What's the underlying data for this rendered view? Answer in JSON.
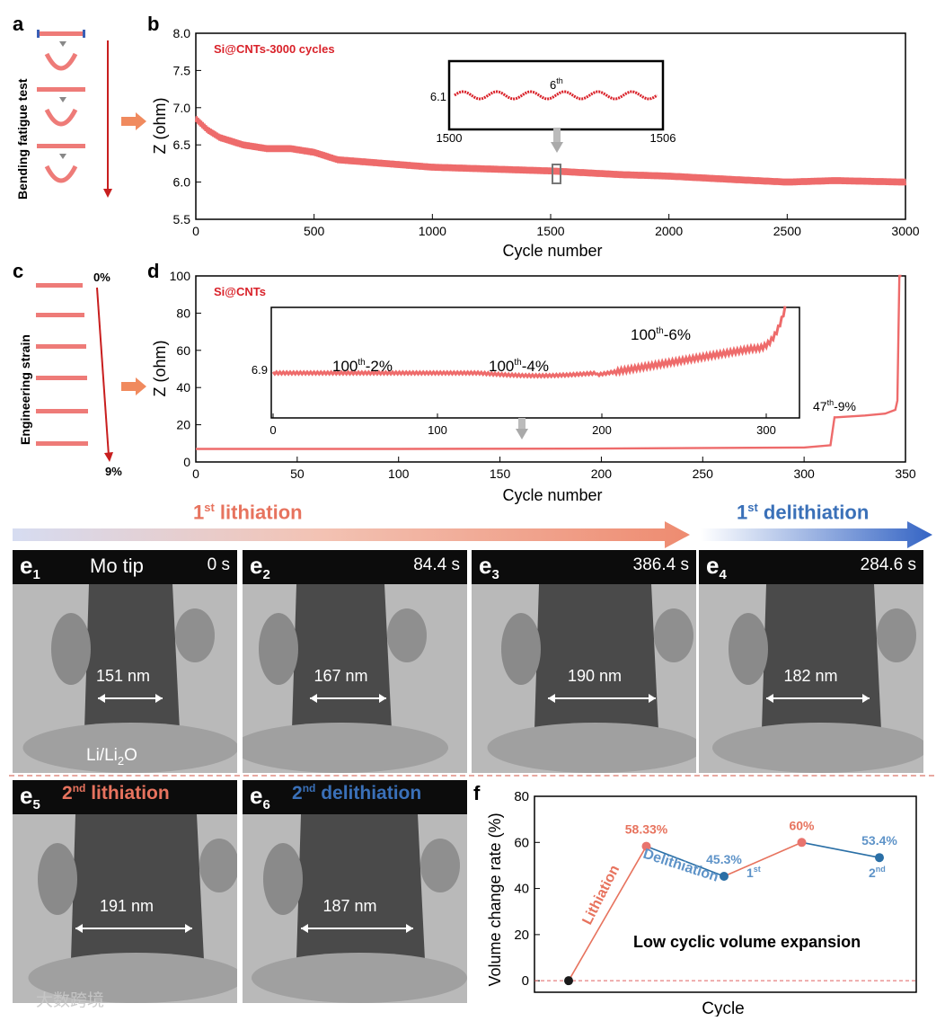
{
  "panels": {
    "a": {
      "letter": "a",
      "title": "Bending fatigue test"
    },
    "b": {
      "letter": "b",
      "legend": "Si@CNTs-3000 cycles",
      "inset": {
        "value_label": "6.1",
        "cycle_label": "6",
        "cycle_sup": "th",
        "x_start": "1500",
        "x_end": "1506"
      }
    },
    "c": {
      "letter": "c",
      "title": "Engineering strain",
      "start": "0%",
      "end": "9%"
    },
    "d": {
      "letter": "d",
      "legend": "Si@CNTs",
      "inset": {
        "value_label": "6.9",
        "label_2": {
          "main": "100",
          "sup": "th",
          "tail": "-2%"
        },
        "label_4": {
          "main": "100",
          "sup": "th",
          "tail": "-4%"
        },
        "label_6": {
          "main": "100",
          "sup": "th",
          "tail": "-6%"
        },
        "x_ticks": [
          "0",
          "100",
          "200",
          "300"
        ]
      },
      "label_9": {
        "main": "47",
        "sup": "th",
        "tail": "-9%"
      }
    },
    "lithiation_arrow": {
      "main": "1",
      "sup": "st",
      "tail": " lithiation"
    },
    "delithiation_arrow": {
      "main": "1",
      "sup": "st",
      "tail": " delithiation"
    },
    "tem": [
      {
        "id": "e",
        "sub": "1",
        "time": "0 s",
        "top_label": "Mo tip",
        "width_label": "151 nm",
        "bottom_label": "Li/Li",
        "bottom_sub": "2",
        "bottom_tail": "O"
      },
      {
        "id": "e",
        "sub": "2",
        "time": "84.4 s",
        "width_label": "167 nm"
      },
      {
        "id": "e",
        "sub": "3",
        "time": "386.4 s",
        "width_label": "190 nm"
      },
      {
        "id": "e",
        "sub": "4",
        "time": "284.6 s",
        "width_label": "182 nm"
      },
      {
        "id": "e",
        "sub": "5",
        "caption": {
          "main": "2",
          "sup": "nd",
          "tail": " lithiation"
        },
        "width_label": "191 nm"
      },
      {
        "id": "e",
        "sub": "6",
        "caption": {
          "main": "2",
          "sup": "nd",
          "tail": " delithiation"
        },
        "width_label": "187 nm"
      }
    ],
    "f": {
      "letter": "f",
      "annotation_lith": "Lithiation",
      "annotation_delith": "Delithiation",
      "tag_1": {
        "main": "1",
        "sup": "st"
      },
      "tag_2": {
        "main": "2",
        "sup": "nd"
      },
      "note": "Low cyclic volume expansion"
    },
    "watermark": "大数跨境"
  },
  "chart_data": [
    {
      "panel": "b",
      "type": "line",
      "xlabel": "Cycle number",
      "ylabel": "Z (ohm)",
      "xlim": [
        0,
        3000
      ],
      "ylim": [
        5.5,
        8.0
      ],
      "x_ticks": [
        0,
        500,
        1000,
        1500,
        2000,
        2500,
        3000
      ],
      "y_ticks": [
        5.5,
        6.0,
        6.5,
        7.0,
        7.5,
        8.0
      ],
      "series": [
        {
          "x": [
            0,
            50,
            100,
            200,
            300,
            400,
            500,
            600,
            800,
            1000,
            1200,
            1500,
            1800,
            2000,
            2300,
            2500,
            2700,
            3000
          ],
          "values": [
            6.85,
            6.7,
            6.6,
            6.5,
            6.45,
            6.45,
            6.4,
            6.3,
            6.25,
            6.2,
            6.18,
            6.15,
            6.1,
            6.08,
            6.03,
            6.0,
            6.02,
            6.0
          ]
        }
      ]
    },
    {
      "panel": "d",
      "type": "line",
      "xlabel": "Cycle number",
      "ylabel": "Z (ohm)",
      "xlim": [
        0,
        350
      ],
      "ylim": [
        0,
        100
      ],
      "x_ticks": [
        0,
        50,
        100,
        150,
        200,
        250,
        300,
        350
      ],
      "y_ticks": [
        0,
        20,
        40,
        60,
        80,
        100
      ],
      "series": [
        {
          "x": [
            0,
            100,
            200,
            300,
            313,
            315,
            316,
            330,
            340,
            345,
            346,
            347,
            348
          ],
          "values": [
            7,
            7,
            7.2,
            7.8,
            9,
            24,
            24,
            25,
            26,
            28,
            33,
            100,
            100
          ]
        }
      ]
    },
    {
      "panel": "f",
      "type": "line",
      "xlabel": "Cycle",
      "ylabel": "Volume change rate (%)",
      "ylim": [
        -5,
        80
      ],
      "y_ticks": [
        0,
        20,
        40,
        60,
        80
      ],
      "points": [
        {
          "x": 0,
          "value": 0,
          "label": "",
          "color": "#1a1a1a"
        },
        {
          "x": 1,
          "value": 58.33,
          "label": "58.33%",
          "color": "#e8746e"
        },
        {
          "x": 2,
          "value": 45.3,
          "label": "45.3%",
          "color": "#2a6fa6"
        },
        {
          "x": 3,
          "value": 60,
          "label": "60%",
          "color": "#e8746e"
        },
        {
          "x": 4,
          "value": 53.4,
          "label": "53.4%",
          "color": "#2a6fa6"
        }
      ]
    }
  ],
  "colors": {
    "red_curve": "#ee6b6b",
    "legend_red": "#d9222a",
    "lith_red": "#e7735e",
    "delith_blue": "#3a70b8",
    "arrow_dark_red": "#c81e1e"
  }
}
